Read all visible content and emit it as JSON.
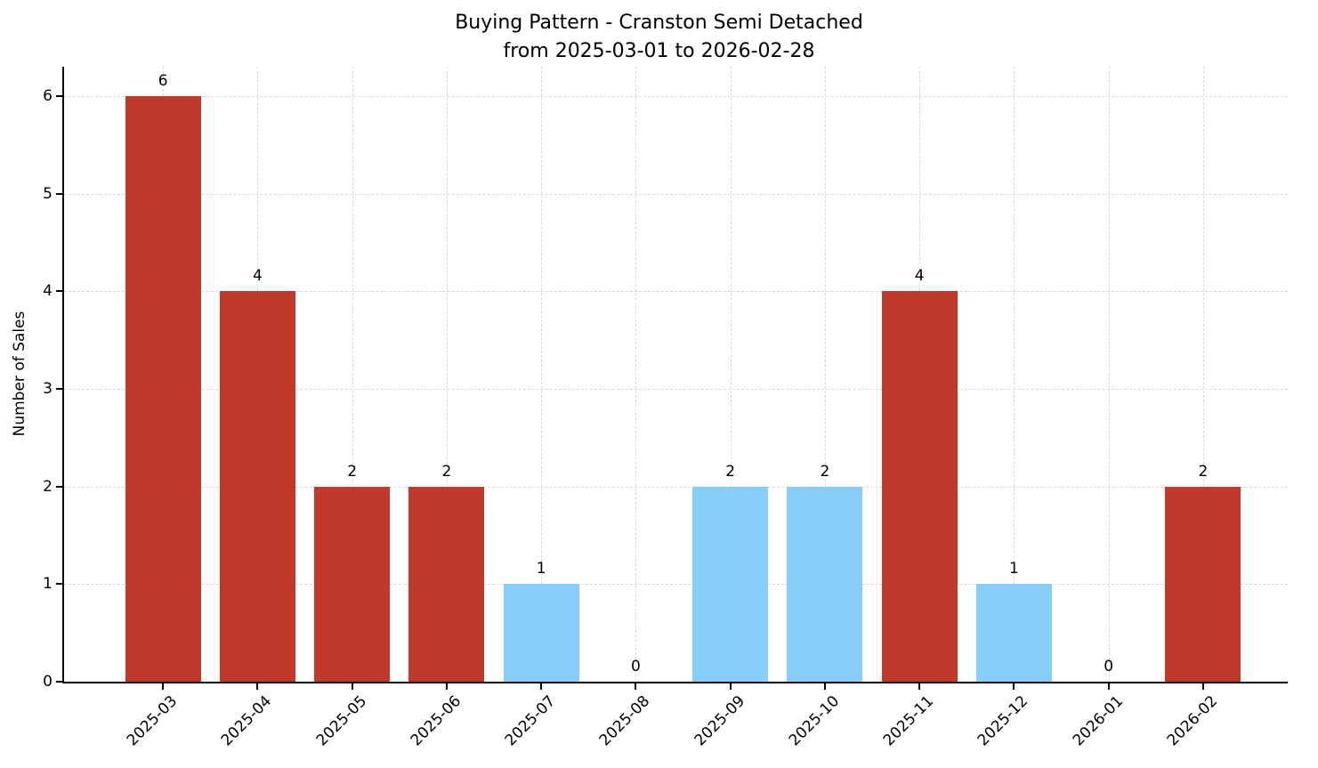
{
  "chart": {
    "title_line1": "Buying Pattern - Cranston Semi Detached",
    "title_line2": "from 2025-03-01 to 2026-02-28",
    "ylabel": "Number of Sales"
  },
  "chart_data": {
    "type": "bar",
    "title": "Buying Pattern - Cranston Semi Detached\nfrom 2025-03-01 to 2026-02-28",
    "xlabel": "",
    "ylabel": "Number of Sales",
    "categories": [
      "2025-03",
      "2025-04",
      "2025-05",
      "2025-06",
      "2025-07",
      "2025-08",
      "2025-09",
      "2025-10",
      "2025-11",
      "2025-12",
      "2026-01",
      "2026-02"
    ],
    "values": [
      6,
      4,
      2,
      2,
      1,
      0,
      2,
      2,
      4,
      1,
      0,
      2
    ],
    "value_labels": [
      "6",
      "4",
      "2",
      "2",
      "1",
      "0",
      "2",
      "2",
      "4",
      "1",
      "0",
      "2"
    ],
    "bar_colors": [
      "#c0392b",
      "#c0392b",
      "#c0392b",
      "#c0392b",
      "#87CEFA",
      "#c0392b",
      "#87CEFA",
      "#87CEFA",
      "#c0392b",
      "#87CEFA",
      "#c0392b",
      "#c0392b"
    ],
    "colors": {
      "red": "#c0392b",
      "light_blue": "#87CEFA"
    },
    "yticks": [
      0,
      1,
      2,
      3,
      4,
      5,
      6
    ],
    "ylim": [
      0,
      6.3
    ],
    "grid": true,
    "grid_style": "dashed",
    "legend": false,
    "x_tick_rotation": 45
  }
}
